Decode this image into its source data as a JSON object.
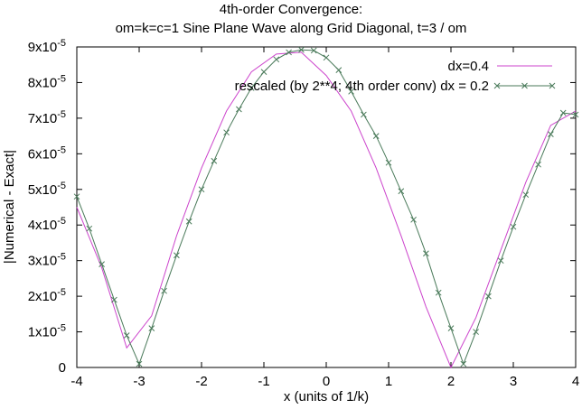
{
  "chart_data": {
    "type": "line",
    "title": "4th-order Convergence:",
    "subtitle": "om=k=c=1 Sine Plane Wave along Grid Diagonal, t=3 / om",
    "xlabel": "x (units of 1/k)",
    "ylabel": "|Numerical - Exact|",
    "xlim": [
      -4,
      4
    ],
    "ylim": [
      0,
      9e-05
    ],
    "x_ticks": [
      "-4",
      "-3",
      "-2",
      "-1",
      "0",
      "1",
      "2",
      "3",
      "4"
    ],
    "y_ticks": [
      {
        "mantissa": "0",
        "exponent": ""
      },
      {
        "mantissa": "1x10",
        "exponent": "-5"
      },
      {
        "mantissa": "2x10",
        "exponent": "-5"
      },
      {
        "mantissa": "3x10",
        "exponent": "-5"
      },
      {
        "mantissa": "4x10",
        "exponent": "-5"
      },
      {
        "mantissa": "5x10",
        "exponent": "-5"
      },
      {
        "mantissa": "6x10",
        "exponent": "-5"
      },
      {
        "mantissa": "7x10",
        "exponent": "-5"
      },
      {
        "mantissa": "8x10",
        "exponent": "-5"
      },
      {
        "mantissa": "9x10",
        "exponent": "-5"
      }
    ],
    "grid": false,
    "legend_position": "top-right",
    "series": [
      {
        "name": "dx=0.4",
        "color": "#cc44cc",
        "marker": "none",
        "x": [
          -4.0,
          -3.6,
          -3.2,
          -2.8,
          -2.4,
          -2.0,
          -1.6,
          -1.2,
          -0.8,
          -0.4,
          0.0,
          0.4,
          0.8,
          1.2,
          1.6,
          2.0,
          2.4,
          2.8,
          3.2,
          3.6,
          4.0
        ],
        "y": [
          4.5e-05,
          2.8e-05,
          5.5e-06,
          1.45e-05,
          3.7e-05,
          5.6e-05,
          7.2e-05,
          8.3e-05,
          8.8e-05,
          8.85e-05,
          8.2e-05,
          7.2e-05,
          5.6e-05,
          3.7e-05,
          1.7e-05,
          0.0,
          1.4e-05,
          3.3e-05,
          5.2e-05,
          6.8e-05,
          7.2e-05
        ]
      },
      {
        "name": "rescaled (by 2**4; 4th order conv) dx = 0.2",
        "color": "#4a7a5a",
        "marker": "x",
        "x": [
          -4.0,
          -3.8,
          -3.6,
          -3.4,
          -3.2,
          -3.0,
          -2.8,
          -2.6,
          -2.4,
          -2.2,
          -2.0,
          -1.8,
          -1.6,
          -1.4,
          -1.2,
          -1.0,
          -0.8,
          -0.6,
          -0.4,
          -0.2,
          0.0,
          0.2,
          0.4,
          0.6,
          0.8,
          1.0,
          1.2,
          1.4,
          1.6,
          1.8,
          2.0,
          2.2,
          2.4,
          2.6,
          2.8,
          3.0,
          3.2,
          3.4,
          3.6,
          3.8,
          4.0
        ],
        "y": [
          4.8e-05,
          3.9e-05,
          2.9e-05,
          1.9e-05,
          9e-06,
          1e-06,
          1.1e-05,
          2.15e-05,
          3.15e-05,
          4.1e-05,
          5e-05,
          5.8e-05,
          6.6e-05,
          7.25e-05,
          7.85e-05,
          8.3e-05,
          8.65e-05,
          8.85e-05,
          8.92e-05,
          8.9e-05,
          8.7e-05,
          8.35e-05,
          7.75e-05,
          7.1e-05,
          6.5e-05,
          5.75e-05,
          4.95e-05,
          4.15e-05,
          3.2e-05,
          2.1e-05,
          1.1e-05,
          1e-06,
          1e-05,
          2e-05,
          3e-05,
          3.95e-05,
          4.85e-05,
          5.7e-05,
          6.55e-05,
          7.15e-05,
          7.1e-05
        ]
      }
    ]
  }
}
